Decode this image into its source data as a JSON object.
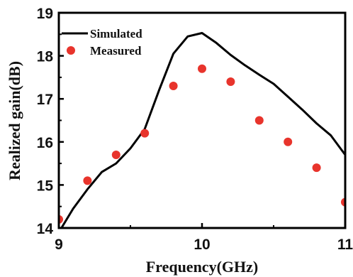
{
  "chart_data": {
    "type": "line",
    "xlabel": "Frequency(GHz)",
    "ylabel": "Realized gain(dB)",
    "xlim": [
      9,
      11
    ],
    "ylim": [
      14,
      19
    ],
    "x_ticks": [
      9,
      10,
      11
    ],
    "y_ticks": [
      14,
      15,
      16,
      17,
      18,
      19
    ],
    "x_tick_labels": [
      "9",
      "10",
      "11"
    ],
    "y_tick_labels": [
      "14",
      "15",
      "16",
      "17",
      "18",
      "19"
    ],
    "grid": false,
    "legend_position": "top-left",
    "series": [
      {
        "name": "Simulated",
        "kind": "line",
        "color": "#000000",
        "x": [
          9.0,
          9.1,
          9.2,
          9.3,
          9.4,
          9.5,
          9.6,
          9.7,
          9.8,
          9.9,
          10.0,
          10.1,
          10.2,
          10.3,
          10.4,
          10.5,
          10.6,
          10.7,
          10.8,
          10.9,
          11.0
        ],
        "y": [
          13.9,
          14.45,
          14.9,
          15.3,
          15.5,
          15.85,
          16.3,
          17.2,
          18.05,
          18.45,
          18.53,
          18.3,
          18.02,
          17.78,
          17.56,
          17.35,
          17.05,
          16.75,
          16.43,
          16.15,
          15.7
        ]
      },
      {
        "name": "Measured",
        "kind": "scatter",
        "color": "#e8342c",
        "x": [
          9.0,
          9.2,
          9.4,
          9.6,
          9.8,
          10.0,
          10.2,
          10.4,
          10.6,
          10.8,
          11.0
        ],
        "y": [
          14.2,
          15.1,
          15.7,
          16.2,
          17.3,
          17.7,
          17.4,
          16.5,
          16.0,
          15.4,
          14.6
        ]
      }
    ]
  }
}
